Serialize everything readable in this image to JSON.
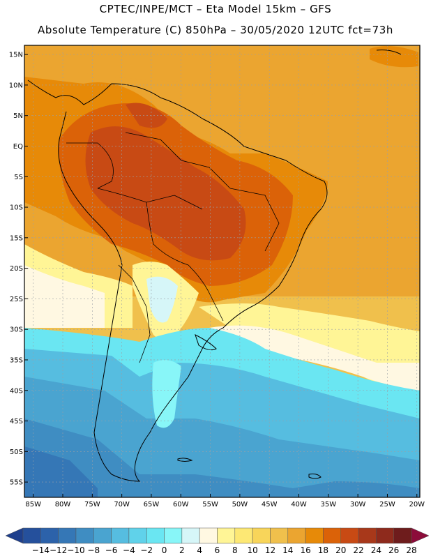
{
  "header": {
    "line1": "CPTEC/INPE/MCT –  Eta Model 15km – GFS",
    "line2": "Absolute Temperature (C) 850hPa – 30/05/2020 12UTC fct=73h"
  },
  "map": {
    "lat_labels": [
      "15N",
      "10N",
      "5N",
      "EQ",
      "5S",
      "10S",
      "15S",
      "20S",
      "25S",
      "30S",
      "35S",
      "40S",
      "45S",
      "50S",
      "55S"
    ],
    "lon_labels": [
      "85W",
      "80W",
      "75W",
      "70W",
      "65W",
      "60W",
      "55W",
      "50W",
      "45W",
      "40W",
      "35W",
      "30W",
      "25W",
      "20W"
    ],
    "lat_range": [
      -57.5,
      16.5
    ],
    "lon_range": [
      -86.5,
      -19.5
    ]
  },
  "legend": {
    "labels": [
      "-14",
      "-12",
      "-10",
      "-8",
      "-6",
      "-4",
      "-2",
      "0",
      "2",
      "4",
      "6",
      "8",
      "10",
      "12",
      "14",
      "16",
      "18",
      "20",
      "22",
      "24",
      "26",
      "28"
    ],
    "colors": [
      "#1e3f8c",
      "#25509c",
      "#2c62aa",
      "#3577b6",
      "#3f8dc2",
      "#4aa4d0",
      "#56bde0",
      "#60d2ea",
      "#6ae6f2",
      "#88f6f8",
      "#d6f6f8",
      "#fff8e2",
      "#fff596",
      "#fde874",
      "#f8d55a",
      "#f0c04c",
      "#eba530",
      "#e78a08",
      "#db6208",
      "#c84a14",
      "#a8381a",
      "#8e2a1c",
      "#6e1c1c",
      "#8c0c3a"
    ]
  }
}
